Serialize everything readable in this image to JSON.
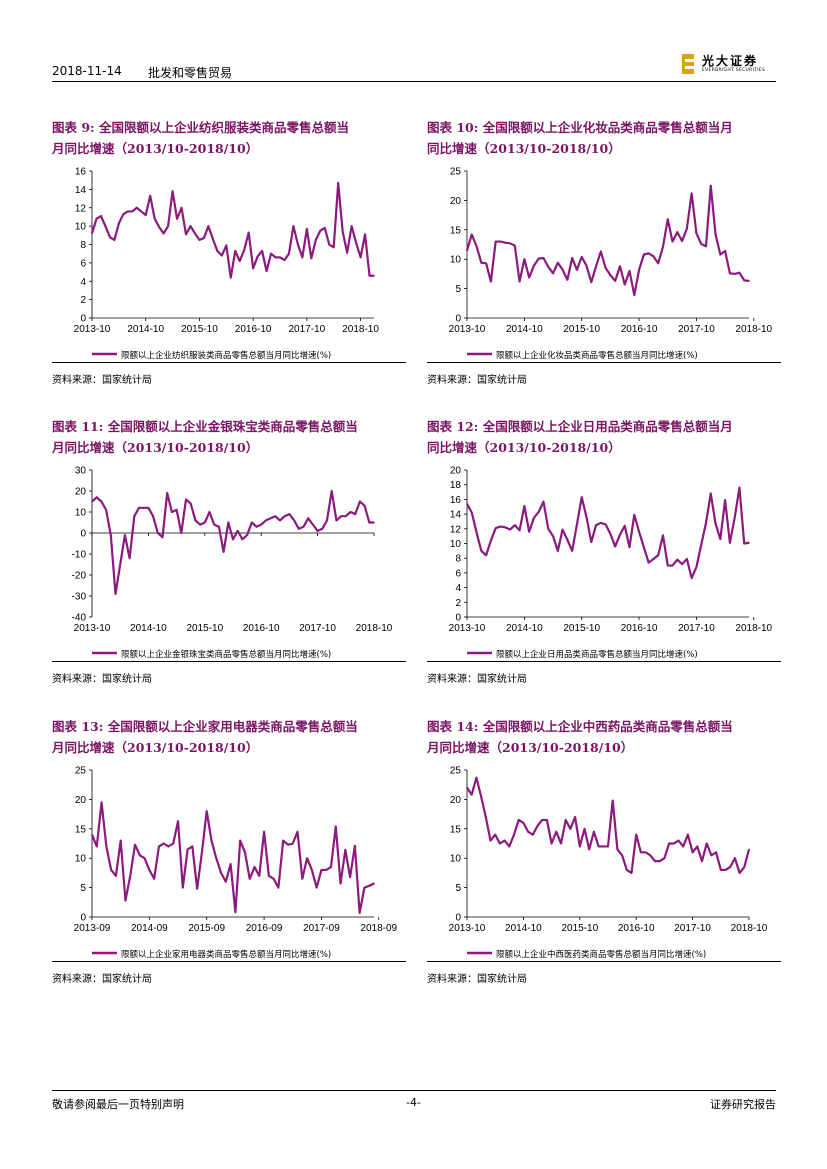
{
  "header": {
    "date": "2018-11-14",
    "sector": "批发和零售贸易",
    "logo_cn": "光大证券",
    "logo_en": "EVERBRIGHT SECURITIES",
    "brand_color": "#d8a21a"
  },
  "footer": {
    "disclaimer": "敬请参阅最后一页特别声明",
    "page": "-4-",
    "report_type": "证券研究报告"
  },
  "colors": {
    "series": "#8b1a7e",
    "title": "#7a1463"
  },
  "chart_data": [
    {
      "id": "chart9",
      "type": "line",
      "number": "图表 9:",
      "title_line1": "全国限额以上企业纺织服装类商品零售总额当",
      "title_line2": "月同比增速（2013/10-2018/10）",
      "legend": "限额以上企业纺织服装类商品零售总额当月同比增速(%)",
      "source": "资料来源：国家统计局",
      "ylim": [
        0,
        16
      ],
      "yticks": [
        "0",
        "2",
        "4",
        "6",
        "8",
        "10",
        "12",
        "14",
        "16"
      ],
      "xticks": [
        "2013-10",
        "2014-10",
        "2015-10",
        "2016-10",
        "2017-10",
        "2018-10"
      ],
      "values": [
        9.2,
        10.8,
        11.1,
        10.0,
        8.8,
        8.5,
        10.3,
        11.3,
        11.6,
        11.6,
        12.0,
        11.6,
        11.2,
        13.3,
        10.8,
        9.9,
        9.2,
        10.0,
        13.8,
        10.8,
        12.0,
        9.1,
        10.0,
        9.2,
        8.5,
        8.7,
        10.0,
        8.6,
        7.3,
        6.8,
        7.9,
        4.4,
        7.3,
        6.2,
        7.4,
        9.3,
        5.4,
        6.7,
        7.3,
        5.1,
        7.0,
        6.6,
        6.6,
        6.3,
        7.0,
        10.0,
        8.0,
        6.6,
        9.7,
        6.5,
        8.5,
        9.5,
        9.8,
        8.0,
        7.7,
        14.7,
        9.4,
        7.1,
        10.0,
        8.2,
        6.6,
        9.1,
        4.6,
        4.6
      ]
    },
    {
      "id": "chart10",
      "type": "line",
      "number": "图表 10:",
      "title_line1": "全国限额以上企业化妆品类商品零售总额当月",
      "title_line2": "同比增速（2013/10-2018/10）",
      "legend": "限额以上企业化妆品类商品零售总额当月同比增速(%)",
      "source": "资料来源：国家统计局",
      "ylim": [
        0,
        25
      ],
      "yticks": [
        "0",
        "5",
        "10",
        "15",
        "20",
        "25"
      ],
      "xticks": [
        "2013-10",
        "2014-10",
        "2015-10",
        "2016-10",
        "2017-10",
        "2018-10"
      ],
      "values": [
        11.5,
        14.2,
        12.2,
        9.4,
        9.3,
        6.2,
        13.0,
        13.0,
        12.8,
        12.7,
        12.3,
        6.2,
        10.0,
        6.9,
        8.9,
        10.1,
        10.2,
        8.7,
        7.6,
        9.4,
        8.2,
        6.5,
        10.2,
        8.2,
        10.4,
        8.9,
        6.1,
        8.8,
        11.3,
        8.5,
        7.3,
        6.3,
        8.8,
        5.7,
        8.0,
        3.9,
        8.2,
        10.8,
        11.0,
        10.5,
        9.3,
        12.1,
        16.8,
        13.0,
        14.6,
        13.1,
        15.2,
        21.2,
        14.4,
        12.6,
        12.2,
        22.5,
        14.2,
        10.8,
        11.4,
        7.6,
        7.5,
        7.7,
        6.4,
        6.3
      ]
    },
    {
      "id": "chart11",
      "type": "line",
      "number": "图表 11:",
      "title_line1": "全国限额以上企业金银珠宝类商品零售总额当",
      "title_line2": "月同比增速（2013/10-2018/10）",
      "legend": "限额以上企业金银珠宝类商品零售总额当月同比增速(%)",
      "source": "资料来源：国家统计局",
      "ylim": [
        -40,
        30
      ],
      "yticks": [
        "-40",
        "-30",
        "-20",
        "-10",
        "0",
        "10",
        "20",
        "30"
      ],
      "xticks": [
        "2013-10",
        "2014-10",
        "2015-10",
        "2016-10",
        "2017-10",
        "2018-10"
      ],
      "values": [
        15.0,
        17.0,
        15.0,
        11.0,
        -1.0,
        -29.0,
        -15.0,
        -1.0,
        -12.0,
        8.0,
        12.0,
        12.0,
        12.0,
        8.0,
        0.0,
        -2.0,
        19.0,
        10.0,
        11.0,
        0.0,
        16.0,
        14.0,
        6.0,
        4.0,
        5.0,
        10.0,
        4.0,
        3.0,
        -9.0,
        5.0,
        -3.0,
        1.0,
        -3.0,
        -1.0,
        5.0,
        3.0,
        4.0,
        6.0,
        7.0,
        8.0,
        6.0,
        8.0,
        9.0,
        6.0,
        2.0,
        3.0,
        7.0,
        4.0,
        1.0,
        2.0,
        6.0,
        20.0,
        6.0,
        8.0,
        8.0,
        10.0,
        9.0,
        15.0,
        13.0,
        5.0,
        5.0
      ]
    },
    {
      "id": "chart12",
      "type": "line",
      "number": "图表 12:",
      "title_line1": "全国限额以上企业日用品类商品零售总额当月",
      "title_line2": "同比增速（2013/10-2018/10）",
      "legend": "限额以上企业日用品类商品零售总额当月同比增速(%)",
      "source": "资料来源：国家统计局",
      "ylim": [
        0,
        20
      ],
      "yticks": [
        "0",
        "2",
        "4",
        "6",
        "8",
        "10",
        "12",
        "14",
        "16",
        "18",
        "20"
      ],
      "xticks": [
        "2013-10",
        "2014-10",
        "2015-10",
        "2016-10",
        "2017-10",
        "2018-10"
      ],
      "values": [
        15.4,
        14.2,
        11.5,
        9.0,
        8.4,
        10.4,
        12.1,
        12.3,
        12.2,
        11.9,
        12.5,
        11.8,
        15.1,
        11.6,
        13.5,
        14.3,
        15.7,
        12.0,
        11.0,
        9.0,
        11.9,
        10.5,
        9.0,
        12.6,
        16.3,
        13.6,
        10.2,
        12.5,
        12.8,
        12.6,
        11.3,
        9.6,
        11.2,
        12.4,
        9.5,
        13.9,
        11.6,
        9.5,
        7.4,
        7.9,
        8.4,
        11.1,
        7.0,
        7.0,
        7.8,
        7.2,
        7.9,
        5.3,
        6.8,
        9.8,
        12.8,
        16.8,
        12.7,
        10.6,
        15.9,
        10.1,
        13.5,
        17.6,
        10.0,
        10.1
      ]
    },
    {
      "id": "chart13",
      "type": "line",
      "number": "图表 13:",
      "title_line1": "全国限额以上企业家用电器类商品零售总额当",
      "title_line2": "月同比增速（2013/10-2018/10）",
      "legend": "限额以上企业家用电器类商品零售总额当月同比增速(%)",
      "source": "资料来源：国家统计局",
      "ylim": [
        0,
        25
      ],
      "yticks": [
        "0",
        "5",
        "10",
        "15",
        "20",
        "25"
      ],
      "xticks": [
        "2013-09",
        "2014-09",
        "2015-09",
        "2016-09",
        "2017-09",
        "2018-09"
      ],
      "values": [
        14.0,
        12.0,
        19.5,
        12.0,
        8.0,
        7.0,
        13.0,
        2.8,
        7.0,
        12.3,
        10.5,
        10.0,
        8.0,
        6.5,
        12.0,
        12.5,
        12.0,
        12.5,
        16.3,
        5.0,
        11.5,
        12.0,
        4.8,
        11.0,
        18.0,
        13.0,
        10.0,
        7.5,
        6.0,
        9.0,
        0.8,
        13.0,
        11.0,
        6.5,
        8.5,
        7.0,
        14.5,
        7.0,
        6.5,
        5.0,
        13.0,
        12.3,
        12.5,
        14.5,
        6.5,
        10.0,
        8.0,
        5.0,
        8.0,
        8.0,
        8.5,
        15.4,
        5.7,
        11.4,
        6.8,
        12.1,
        0.7,
        5.0,
        5.3,
        5.7
      ]
    },
    {
      "id": "chart14",
      "type": "line",
      "number": "图表 14:",
      "title_line1": "全国限额以上企业中西药品类商品零售总额当",
      "title_line2": "月同比增速（2013/10-2018/10）",
      "legend": "限额以上企业中西医药类商品零售总额当月同比增速(%)",
      "source": "资料来源：国家统计局",
      "ylim": [
        0,
        25
      ],
      "yticks": [
        "0",
        "5",
        "10",
        "15",
        "20",
        "25"
      ],
      "xticks": [
        "2013-10",
        "2014-10",
        "2015-10",
        "2016-10",
        "2017-10",
        "2018-10"
      ],
      "values": [
        22.0,
        20.8,
        23.7,
        20.5,
        17.0,
        13.0,
        14.0,
        12.5,
        13.0,
        12.0,
        14.0,
        16.5,
        16.0,
        14.5,
        14.0,
        15.5,
        16.5,
        16.5,
        12.5,
        14.5,
        12.5,
        16.5,
        15.0,
        17.0,
        12.0,
        15.0,
        11.5,
        14.5,
        12.0,
        12.0,
        12.0,
        19.8,
        11.5,
        10.5,
        8.0,
        7.5,
        14.0,
        11.0,
        11.0,
        10.5,
        9.5,
        9.5,
        10.0,
        12.5,
        12.5,
        13.0,
        12.0,
        14.0,
        11.0,
        12.0,
        9.5,
        12.5,
        10.5,
        11.0,
        8.0,
        8.0,
        8.5,
        10.0,
        7.5,
        8.5,
        11.5
      ]
    }
  ]
}
